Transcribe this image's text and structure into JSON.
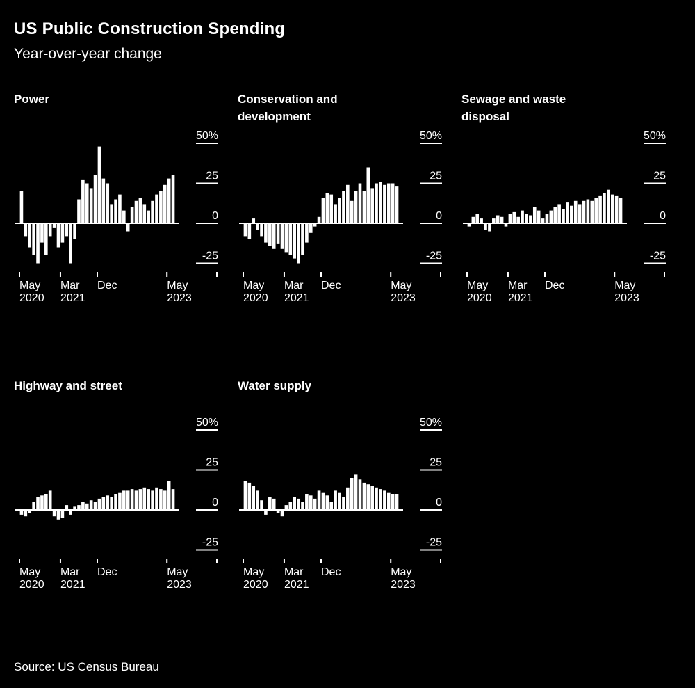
{
  "header": {
    "title": "US Public Construction Spending",
    "subtitle": "Year-over-year change"
  },
  "footer": {
    "source": "Source: US Census Bureau"
  },
  "colors": {
    "background": "#000000",
    "foreground": "#ffffff",
    "bar": "#ffffff"
  },
  "chart_data": {
    "type": "bar",
    "unit": "percent_yoy_change",
    "shared": {
      "categories": [
        "May 2020",
        "Jun 2020",
        "Jul 2020",
        "Aug 2020",
        "Sep 2020",
        "Oct 2020",
        "Nov 2020",
        "Dec 2020",
        "Jan 2021",
        "Feb 2021",
        "Mar 2021",
        "Apr 2021",
        "May 2021",
        "Jun 2021",
        "Jul 2021",
        "Aug 2021",
        "Sep 2021",
        "Oct 2021",
        "Nov 2021",
        "Dec 2021",
        "Jan 2022",
        "Feb 2022",
        "Mar 2022",
        "Apr 2022",
        "May 2022",
        "Jun 2022",
        "Jul 2022",
        "Aug 2022",
        "Sep 2022",
        "Oct 2022",
        "Nov 2022",
        "Dec 2022",
        "Jan 2023",
        "Feb 2023",
        "Mar 2023",
        "Apr 2023",
        "May 2023",
        "Jun 2023"
      ],
      "ylim": [
        -30,
        55
      ],
      "grid": false,
      "y_ticks": [
        {
          "value": 50,
          "label": "50%"
        },
        {
          "value": 25,
          "label": "25"
        },
        {
          "value": 0,
          "label": "0"
        },
        {
          "value": -25,
          "label": "-25"
        }
      ],
      "x_ticks": [
        {
          "index": 0,
          "line1": "May",
          "line2": "2020"
        },
        {
          "index": 10,
          "line1": "Mar",
          "line2": "2021"
        },
        {
          "index": 19,
          "line1": "Dec",
          "line2": ""
        },
        {
          "index": 36,
          "line1": "May",
          "line2": "2023"
        }
      ]
    },
    "charts": [
      {
        "title": "Power",
        "values": [
          20,
          -8,
          -15,
          -20,
          -25,
          -12,
          -20,
          -8,
          -3,
          -15,
          -12,
          -8,
          -25,
          -10,
          15,
          27,
          25,
          22,
          30,
          48,
          28,
          25,
          12,
          15,
          18,
          8,
          -5,
          10,
          14,
          16,
          12,
          8,
          14,
          18,
          20,
          24,
          28,
          30
        ]
      },
      {
        "title": "Conservation and development",
        "values": [
          -8,
          -10,
          3,
          -4,
          -8,
          -12,
          -14,
          -16,
          -13,
          -16,
          -18,
          -20,
          -22,
          -25,
          -20,
          -12,
          -6,
          -2,
          4,
          16,
          19,
          18,
          12,
          16,
          20,
          24,
          14,
          20,
          25,
          20,
          35,
          22,
          25,
          26,
          24,
          25,
          25,
          23
        ]
      },
      {
        "title": "Sewage and waste disposal",
        "values": [
          -2,
          4,
          6,
          3,
          -4,
          -5,
          3,
          5,
          4,
          -2,
          6,
          7,
          4,
          8,
          6,
          5,
          10,
          8,
          3,
          6,
          8,
          10,
          12,
          9,
          13,
          11,
          14,
          12,
          14,
          15,
          14,
          16,
          17,
          19,
          21,
          18,
          17,
          16
        ]
      },
      {
        "title": "Highway and street",
        "values": [
          -3,
          -4,
          -2,
          5,
          8,
          9,
          10,
          12,
          -4,
          -6,
          -5,
          3,
          -3,
          2,
          3,
          5,
          4,
          6,
          5,
          7,
          8,
          9,
          8,
          10,
          11,
          12,
          12,
          13,
          12,
          13,
          14,
          13,
          12,
          14,
          13,
          12,
          18,
          13
        ]
      },
      {
        "title": "Water supply",
        "values": [
          18,
          17,
          15,
          12,
          6,
          -3,
          8,
          7,
          -2,
          -4,
          3,
          5,
          8,
          7,
          5,
          10,
          9,
          7,
          12,
          11,
          9,
          5,
          12,
          11,
          8,
          14,
          20,
          22,
          19,
          17,
          16,
          15,
          14,
          13,
          12,
          11,
          10,
          10
        ]
      }
    ]
  }
}
